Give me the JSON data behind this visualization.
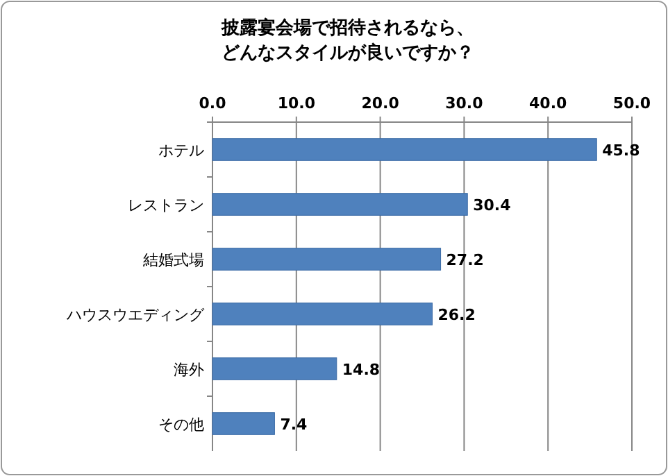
{
  "chart_data": {
    "type": "bar",
    "orientation": "horizontal",
    "title": "披露宴会場で招待されるなら、どんなスタイルが良いですか？",
    "categories": [
      "ホテル",
      "レストラン",
      "結婚式場",
      "ハウスウエディング",
      "海外",
      "その他"
    ],
    "values": [
      45.8,
      30.4,
      27.2,
      26.2,
      14.8,
      7.4
    ],
    "color": "#4f81bd",
    "xlim": [
      0,
      50
    ],
    "xticks": [
      {
        "value": 0,
        "label": "0.0"
      },
      {
        "value": 10,
        "label": "10.0"
      },
      {
        "value": 20,
        "label": "20.0"
      },
      {
        "value": 30,
        "label": "30.0"
      },
      {
        "value": 40,
        "label": "40.0"
      },
      {
        "value": 50,
        "label": "50.0"
      }
    ],
    "grid": "x",
    "data_labels": true
  }
}
